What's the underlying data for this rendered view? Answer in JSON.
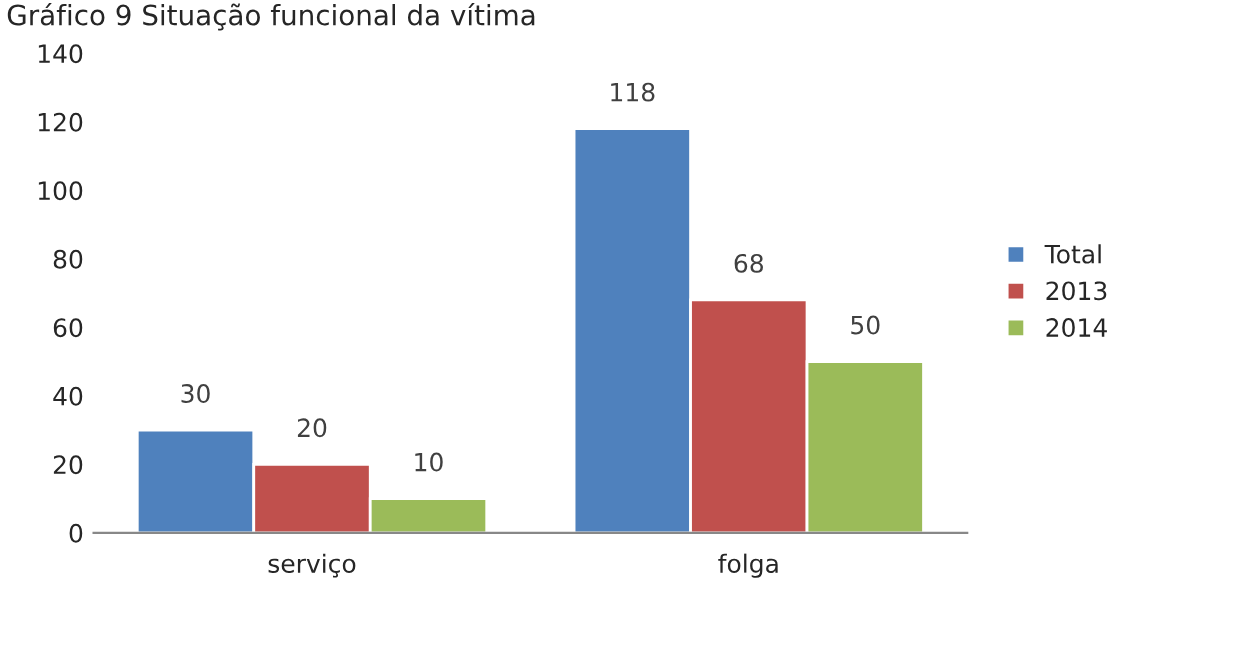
{
  "chart_data": {
    "type": "bar",
    "title": "Gráfico 9 Situação funcional da vítima",
    "categories": [
      "serviço",
      "folga"
    ],
    "series": [
      {
        "name": "Total",
        "color": "#4f81bd",
        "values": [
          30,
          118
        ]
      },
      {
        "name": "2013",
        "color": "#c0504d",
        "values": [
          20,
          68
        ]
      },
      {
        "name": "2014",
        "color": "#9bbb59",
        "values": [
          10,
          50
        ]
      }
    ],
    "ylim": [
      0,
      140
    ],
    "yticks": [
      0,
      20,
      40,
      60,
      80,
      100,
      120,
      140
    ],
    "data_labels": true,
    "legend": "right"
  }
}
